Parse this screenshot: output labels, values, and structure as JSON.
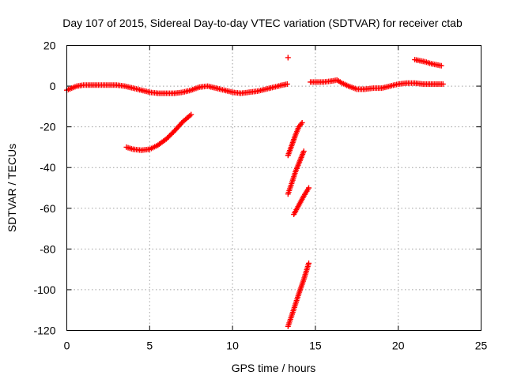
{
  "chart_data": {
    "type": "scatter",
    "title": "Day 107 of 2015, Sidereal Day-to-day VTEC variation (SDTVAR) for receiver ctab",
    "xlabel": "GPS time / hours",
    "ylabel": "SDTVAR / TECUs",
    "xlim": [
      0,
      25
    ],
    "ylim": [
      -120,
      20
    ],
    "xticks": [
      0,
      5,
      10,
      15,
      20,
      25
    ],
    "yticks": [
      -120,
      -100,
      -80,
      -60,
      -40,
      -20,
      0,
      20
    ],
    "xtick_labels": [
      "0",
      "5",
      "10",
      "15",
      "20",
      "25"
    ],
    "ytick_labels": [
      "-120",
      "-100",
      "-80",
      "-60",
      "-40",
      "-20",
      "0",
      "20"
    ],
    "grid": true,
    "marker": "plus",
    "color": "#ff0000",
    "series": [
      {
        "x": [
          0.0,
          0.3,
          0.6,
          1.0,
          1.5,
          2.0,
          2.5,
          3.0,
          3.5,
          4.0,
          4.5,
          5.0,
          5.5,
          6.0,
          6.5,
          7.0,
          7.5,
          8.0,
          8.5,
          9.0,
          9.5,
          10.0,
          10.5,
          11.0,
          11.5,
          12.0,
          12.5,
          13.0,
          13.3
        ],
        "y": [
          -2,
          -1,
          0,
          0.5,
          0.5,
          0.5,
          0.5,
          0.5,
          0,
          -1,
          -2,
          -3,
          -3.5,
          -3.5,
          -3.5,
          -3,
          -2,
          -0.5,
          0,
          -1,
          -2,
          -3,
          -3.5,
          -3,
          -2.5,
          -1.5,
          -0.5,
          0.5,
          1
        ]
      },
      {
        "x": [
          3.6,
          4.0,
          4.5,
          5.0,
          5.5,
          6.0,
          6.5,
          7.0,
          7.5
        ],
        "y": [
          -30,
          -31,
          -31.5,
          -31,
          -29,
          -26,
          -22,
          -17.5,
          -14
        ]
      },
      {
        "x": [
          13.35
        ],
        "y": [
          14
        ]
      },
      {
        "x": [
          13.35,
          13.6,
          13.8,
          14.0,
          14.2
        ],
        "y": [
          -34,
          -28.5,
          -24,
          -20,
          -18
        ]
      },
      {
        "x": [
          13.35,
          13.6,
          13.8,
          14.0,
          14.3
        ],
        "y": [
          -53,
          -47,
          -42,
          -38,
          -32
        ]
      },
      {
        "x": [
          13.7,
          13.9,
          14.1,
          14.3,
          14.6
        ],
        "y": [
          -63,
          -60,
          -57,
          -54,
          -50
        ]
      },
      {
        "x": [
          13.35,
          13.6,
          13.8,
          14.0,
          14.3,
          14.6
        ],
        "y": [
          -118,
          -112,
          -107,
          -102,
          -95,
          -87
        ]
      },
      {
        "x": [
          14.7,
          15.0,
          15.5,
          16.0,
          16.3,
          16.6,
          17.0,
          17.5,
          18.0,
          18.5,
          19.0,
          19.5,
          20.0,
          20.5,
          21.0,
          21.5,
          22.0,
          22.5,
          22.7
        ],
        "y": [
          2,
          2,
          2,
          2.5,
          3,
          1.5,
          0,
          -1.5,
          -1.5,
          -1,
          -1,
          0,
          1,
          1.5,
          1.5,
          1,
          1,
          1,
          1
        ]
      },
      {
        "x": [
          21.0,
          21.3,
          21.6,
          22.0,
          22.3,
          22.6
        ],
        "y": [
          13,
          12.5,
          12,
          11,
          10.5,
          10
        ]
      }
    ]
  }
}
